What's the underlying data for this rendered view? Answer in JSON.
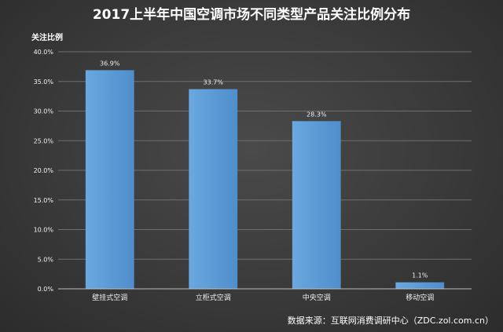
{
  "chart_data": {
    "type": "bar",
    "title": "2017上半年中国空调市场不同类型产品关注比例分布",
    "ylabel": "关注比例",
    "xlabel": "",
    "categories": [
      "壁挂式空调",
      "立柜式空调",
      "中央空调",
      "移动空调"
    ],
    "values": [
      36.9,
      33.7,
      28.3,
      1.1
    ],
    "data_labels": [
      "36.9%",
      "33.7%",
      "28.3%",
      "1.1%"
    ],
    "ylim": [
      0,
      40
    ],
    "yticks": [
      "0.0%",
      "5.0%",
      "10.0%",
      "15.0%",
      "20.0%",
      "25.0%",
      "30.0%",
      "35.0%",
      "40.0%"
    ],
    "grid": true,
    "bar_color": "#5b9bd5",
    "source": "数据来源：互联网消费调研中心（ZDC.zol.com.cn）"
  }
}
